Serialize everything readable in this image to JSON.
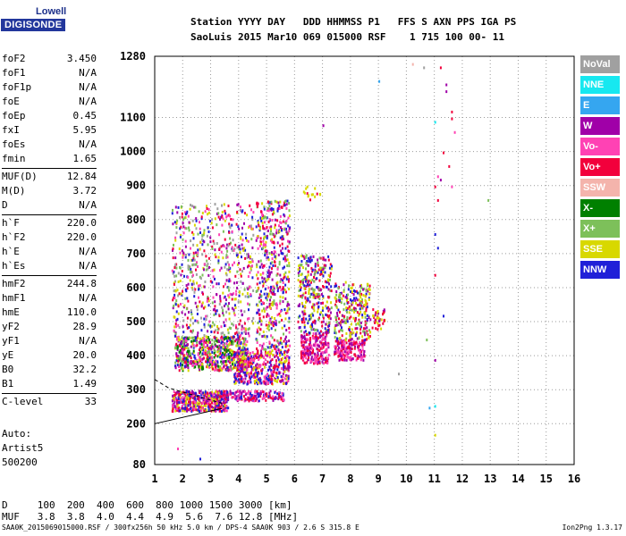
{
  "logo": {
    "top": "Lowell",
    "main": "DIGISONDE"
  },
  "header": {
    "line1": "Station YYYY DAY   DDD HHMMSS P1   FFS S AXN PPS IGA PS",
    "line2": "SaoLuis 2015 Mar10 069 015000 RSF    1 715 100 00- 11"
  },
  "params": [
    [
      {
        "name": "foF2",
        "value": "3.450"
      },
      {
        "name": "foF1",
        "value": "N/A"
      },
      {
        "name": "foF1p",
        "value": "N/A"
      },
      {
        "name": "foE",
        "value": "N/A"
      },
      {
        "name": "foEp",
        "value": "0.45"
      },
      {
        "name": "fxI",
        "value": "5.95"
      },
      {
        "name": "foEs",
        "value": "N/A"
      },
      {
        "name": "fmin",
        "value": "1.65"
      }
    ],
    [
      {
        "name": "MUF(D)",
        "value": "12.84"
      },
      {
        "name": "M(D)",
        "value": "3.72"
      },
      {
        "name": "D",
        "value": "N/A"
      }
    ],
    [
      {
        "name": "h`F",
        "value": "220.0"
      },
      {
        "name": "h`F2",
        "value": "220.0"
      },
      {
        "name": "h`E",
        "value": "N/A"
      },
      {
        "name": "h`Es",
        "value": "N/A"
      }
    ],
    [
      {
        "name": "hmF2",
        "value": "244.8"
      },
      {
        "name": "hmF1",
        "value": "N/A"
      },
      {
        "name": "hmE",
        "value": "110.0"
      },
      {
        "name": "yF2",
        "value": "28.9"
      },
      {
        "name": "yF1",
        "value": "N/A"
      },
      {
        "name": "yE",
        "value": "20.0"
      },
      {
        "name": "B0",
        "value": "32.2"
      },
      {
        "name": "B1",
        "value": "1.49"
      }
    ],
    [
      {
        "name": "C-level",
        "value": "33"
      }
    ]
  ],
  "auto": {
    "line1": "Auto:",
    "line2": "Artist5",
    "line3": "500200"
  },
  "legend": [
    {
      "label": "NoVal",
      "color": "#a0a0a0"
    },
    {
      "label": "NNE",
      "color": "#17e8f0"
    },
    {
      "label": "E",
      "color": "#35a6f0"
    },
    {
      "label": "W",
      "color": "#a000a8"
    },
    {
      "label": "Vo-",
      "color": "#ff42b4"
    },
    {
      "label": "Vo+",
      "color": "#f2003c"
    },
    {
      "label": "SSW",
      "color": "#f4b4ac"
    },
    {
      "label": "X-",
      "color": "#008000"
    },
    {
      "label": "X+",
      "color": "#7dc05a"
    },
    {
      "label": "SSE",
      "color": "#d8d800"
    },
    {
      "label": "NNW",
      "color": "#2020d8"
    }
  ],
  "bottom": {
    "d_line": "D     100  200  400  600  800 1000 1500 3000 [km]",
    "muf_line": "MUF   3.8  3.8  4.0  4.4  4.9  5.6  7.6 12.8 [MHz]"
  },
  "footer": "SAA0K_2015069015000.RSF / 300fx256h 50 kHz 5.0 km / DPS-4 SAA0K 903 / 2.6 S 315.8 E",
  "version": "Ion2Png 1.3.17",
  "chart_data": {
    "type": "scatter",
    "title": "",
    "xlabel": "",
    "ylabel": "",
    "xlim": [
      1,
      16
    ],
    "ylim": [
      80,
      1280
    ],
    "xticks": [
      1,
      2,
      3,
      4,
      5,
      6,
      7,
      8,
      9,
      10,
      11,
      12,
      13,
      14,
      15,
      16
    ],
    "yticks": [
      80,
      200,
      300,
      400,
      500,
      600,
      700,
      800,
      900,
      1000,
      1100,
      1280
    ],
    "grid": true,
    "profile": [
      [
        1,
        200
      ],
      [
        3.4,
        245
      ]
    ],
    "dashed_profile": [
      [
        1,
        330
      ],
      [
        1.5,
        305
      ],
      [
        3.4,
        260
      ]
    ],
    "clusters": [
      {
        "x": [
          1.6,
          3.6
        ],
        "y": [
          240,
          300
        ],
        "n": 500,
        "colors": [
          "#f2003c",
          "#a000a8",
          "#ff42b4",
          "#2020d8",
          "#d8d800"
        ]
      },
      {
        "x": [
          1.7,
          4.3
        ],
        "y": [
          360,
          460
        ],
        "n": 650,
        "colors": [
          "#d8d800",
          "#f2003c",
          "#a000a8",
          "#2020d8",
          "#7dc05a",
          "#ff42b4",
          "#008000"
        ]
      },
      {
        "x": [
          1.6,
          4.5
        ],
        "y": [
          460,
          850
        ],
        "n": 650,
        "colors": [
          "#d8d800",
          "#a000a8",
          "#f2003c",
          "#7dc05a",
          "#2020d8",
          "#ff42b4",
          "#a0a0a0"
        ]
      },
      {
        "x": [
          3.3,
          5.6
        ],
        "y": [
          270,
          300
        ],
        "n": 180,
        "colors": [
          "#a000a8",
          "#f2003c",
          "#2020d8",
          "#ff42b4"
        ]
      },
      {
        "x": [
          3.8,
          5.8
        ],
        "y": [
          320,
          420
        ],
        "n": 450,
        "colors": [
          "#f2003c",
          "#a000a8",
          "#2020d8",
          "#d8d800",
          "#ff42b4"
        ]
      },
      {
        "x": [
          4.6,
          5.8
        ],
        "y": [
          420,
          860
        ],
        "n": 500,
        "colors": [
          "#d8d800",
          "#f2003c",
          "#a000a8",
          "#7dc05a",
          "#2020d8",
          "#ff42b4"
        ]
      },
      {
        "x": [
          6.2,
          7.2
        ],
        "y": [
          380,
          470
        ],
        "n": 220,
        "colors": [
          "#f2003c",
          "#a000a8",
          "#ff42b4"
        ]
      },
      {
        "x": [
          6.1,
          7.3
        ],
        "y": [
          470,
          700
        ],
        "n": 320,
        "colors": [
          "#d8d800",
          "#f2003c",
          "#a000a8",
          "#7dc05a",
          "#2020d8"
        ]
      },
      {
        "x": [
          7.4,
          8.5
        ],
        "y": [
          390,
          450
        ],
        "n": 180,
        "colors": [
          "#f2003c",
          "#a000a8",
          "#ff42b4"
        ]
      },
      {
        "x": [
          7.4,
          8.7
        ],
        "y": [
          450,
          620
        ],
        "n": 260,
        "colors": [
          "#d8d800",
          "#f2003c",
          "#a000a8",
          "#7dc05a",
          "#2020d8"
        ]
      },
      {
        "x": [
          8.7,
          9.2
        ],
        "y": [
          480,
          540
        ],
        "n": 40,
        "colors": [
          "#f2003c",
          "#a000a8",
          "#d8d800"
        ]
      },
      {
        "x": [
          6.3,
          6.9
        ],
        "y": [
          860,
          900
        ],
        "n": 15,
        "colors": [
          "#d8d800",
          "#f2003c"
        ]
      }
    ],
    "scattered": [
      {
        "x": 11.2,
        "y": 1250,
        "c": "#f2003c"
      },
      {
        "x": 11.4,
        "y": 1200,
        "c": "#a000a8"
      },
      {
        "x": 11.4,
        "y": 1180,
        "c": "#a000a8"
      },
      {
        "x": 11.6,
        "y": 1120,
        "c": "#f2003c"
      },
      {
        "x": 11.6,
        "y": 1100,
        "c": "#f2003c"
      },
      {
        "x": 11.7,
        "y": 1060,
        "c": "#ff42b4"
      },
      {
        "x": 11.3,
        "y": 1000,
        "c": "#f2003c"
      },
      {
        "x": 11.5,
        "y": 960,
        "c": "#f2003c"
      },
      {
        "x": 11.1,
        "y": 930,
        "c": "#ff42b4"
      },
      {
        "x": 11.2,
        "y": 920,
        "c": "#a000a8"
      },
      {
        "x": 11.0,
        "y": 900,
        "c": "#f2003c"
      },
      {
        "x": 11.6,
        "y": 900,
        "c": "#ff42b4"
      },
      {
        "x": 11.1,
        "y": 860,
        "c": "#f2003c"
      },
      {
        "x": 11.0,
        "y": 1090,
        "c": "#17e8f0"
      },
      {
        "x": 11.0,
        "y": 760,
        "c": "#2020d8"
      },
      {
        "x": 11.1,
        "y": 720,
        "c": "#2020d8"
      },
      {
        "x": 11.0,
        "y": 640,
        "c": "#f2003c"
      },
      {
        "x": 11.3,
        "y": 520,
        "c": "#2020d8"
      },
      {
        "x": 10.7,
        "y": 450,
        "c": "#7dc05a"
      },
      {
        "x": 11.0,
        "y": 390,
        "c": "#a000a8"
      },
      {
        "x": 10.8,
        "y": 250,
        "c": "#35a6f0"
      },
      {
        "x": 11.0,
        "y": 255,
        "c": "#17e8f0"
      },
      {
        "x": 11.0,
        "y": 170,
        "c": "#d8d800"
      },
      {
        "x": 10.2,
        "y": 1260,
        "c": "#f4b4ac"
      },
      {
        "x": 9.0,
        "y": 1210,
        "c": "#35a6f0"
      },
      {
        "x": 7.0,
        "y": 1080,
        "c": "#a000a8"
      },
      {
        "x": 12.9,
        "y": 860,
        "c": "#7dc05a"
      },
      {
        "x": 10.6,
        "y": 1250,
        "c": "#a0a0a0"
      },
      {
        "x": 9.7,
        "y": 350,
        "c": "#a0a0a0"
      },
      {
        "x": 1.8,
        "y": 130,
        "c": "#ff42b4"
      },
      {
        "x": 2.6,
        "y": 100,
        "c": "#2020d8"
      }
    ]
  }
}
